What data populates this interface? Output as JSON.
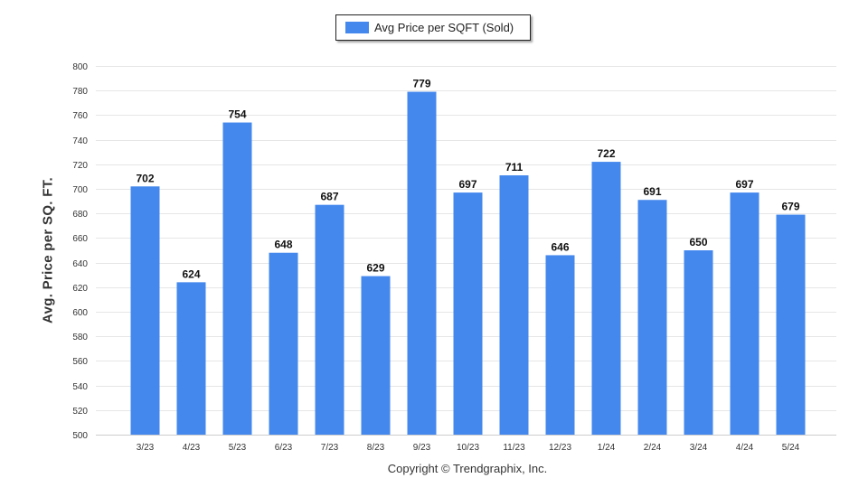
{
  "colors": {
    "bar": "#4488ee",
    "grid": "#e6e6e6",
    "axis_text": "#333333",
    "value_text": "#111111"
  },
  "legend": {
    "label": "Avg Price per SQFT (Sold)",
    "placement": "top-center"
  },
  "footer": {
    "copyright": "Copyright © Trendgraphix, Inc."
  },
  "chart_data": {
    "type": "bar",
    "title": "",
    "xlabel": "",
    "ylabel": "Avg. Price per SQ. FT.",
    "ylim": [
      500,
      800
    ],
    "yticks": [
      500,
      520,
      540,
      560,
      580,
      600,
      620,
      640,
      660,
      680,
      700,
      720,
      740,
      760,
      780,
      800
    ],
    "grid": true,
    "categories": [
      "3/23",
      "4/23",
      "5/23",
      "6/23",
      "7/23",
      "8/23",
      "9/23",
      "10/23",
      "11/23",
      "12/23",
      "1/24",
      "2/24",
      "3/24",
      "4/24",
      "5/24"
    ],
    "series": [
      {
        "name": "Avg Price per SQFT (Sold)",
        "values": [
          702,
          624,
          754,
          648,
          687,
          629,
          779,
          697,
          711,
          646,
          722,
          691,
          650,
          697,
          679
        ]
      }
    ]
  }
}
